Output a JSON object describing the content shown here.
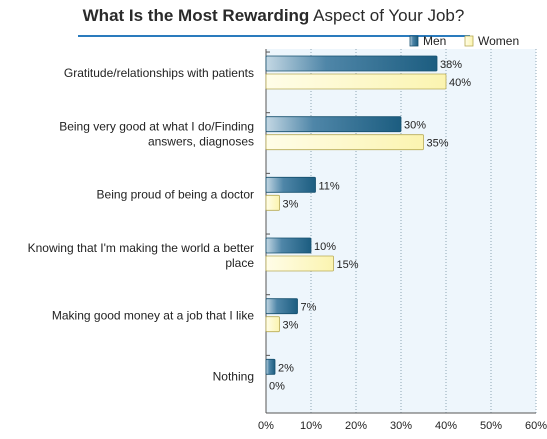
{
  "title_bold": "What Is the Most Rewarding",
  "title_rest": " Aspect of Your Job?",
  "chart_data": {
    "type": "bar",
    "orientation": "horizontal",
    "title": "What Is the Most Rewarding Aspect of Your Job?",
    "categories": [
      [
        "Gratitude/relationships with patients"
      ],
      [
        "Being very good at what I do/Finding",
        "answers, diagnoses"
      ],
      [
        "Being proud of being a doctor"
      ],
      [
        "Knowing that I'm making the world a better",
        "place"
      ],
      [
        "Making good money at a job that I like"
      ],
      [
        "Nothing"
      ]
    ],
    "series": [
      {
        "name": "Men",
        "values": [
          38,
          30,
          11,
          10,
          7,
          2
        ],
        "color": "#1c5d80"
      },
      {
        "name": "Women",
        "values": [
          40,
          35,
          3,
          15,
          3,
          0
        ],
        "color": "#fbf4b0"
      }
    ],
    "xlim": [
      0,
      60
    ],
    "xticks": [
      0,
      10,
      20,
      30,
      40,
      50,
      60
    ],
    "tick_suffix": "%",
    "value_suffix": "%",
    "grid": true,
    "legend_position": "top-right",
    "colors": {
      "plot_background": "#eef6fc",
      "grid": "#8fa6b5",
      "axis": "#555555",
      "title_rule": "#2a7bbd"
    }
  }
}
